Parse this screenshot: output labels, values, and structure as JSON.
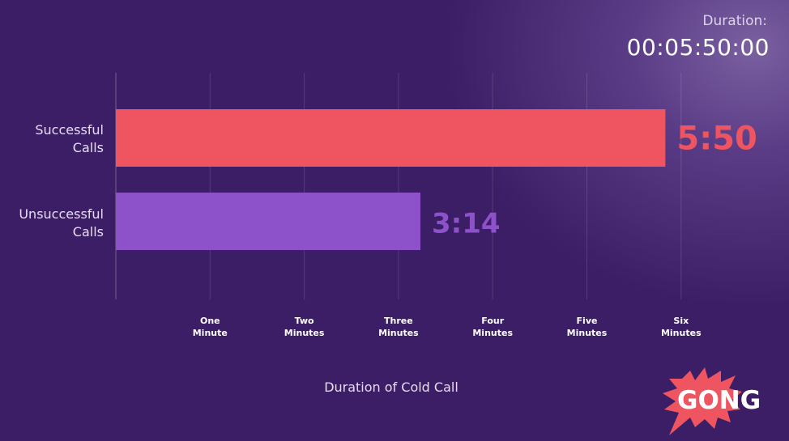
{
  "header": {
    "duration_label": "Duration:",
    "duration_value": "00:05:50:00"
  },
  "chart_data": {
    "type": "bar",
    "orientation": "horizontal",
    "categories": [
      "Successful Calls",
      "Unsuccessful Calls"
    ],
    "values": [
      5.833,
      3.233
    ],
    "data_labels": [
      "5:50",
      "3:14"
    ],
    "unit": "minutes",
    "xlabel": "Duration of Cold Call",
    "ylabel": "",
    "xlim": [
      0,
      6
    ],
    "x_ticks": [
      1,
      2,
      3,
      4,
      5,
      6
    ],
    "x_tick_labels": [
      [
        "One",
        "Minute"
      ],
      [
        "Two",
        "Minutes"
      ],
      [
        "Three",
        "Minutes"
      ],
      [
        "Four",
        "Minutes"
      ],
      [
        "Five",
        "Minutes"
      ],
      [
        "Six",
        "Minutes"
      ]
    ],
    "grid": true,
    "colors": [
      "#ee5560",
      "#8d52c9"
    ]
  },
  "logo": {
    "text": "GONG",
    "color": "#ee5560"
  }
}
